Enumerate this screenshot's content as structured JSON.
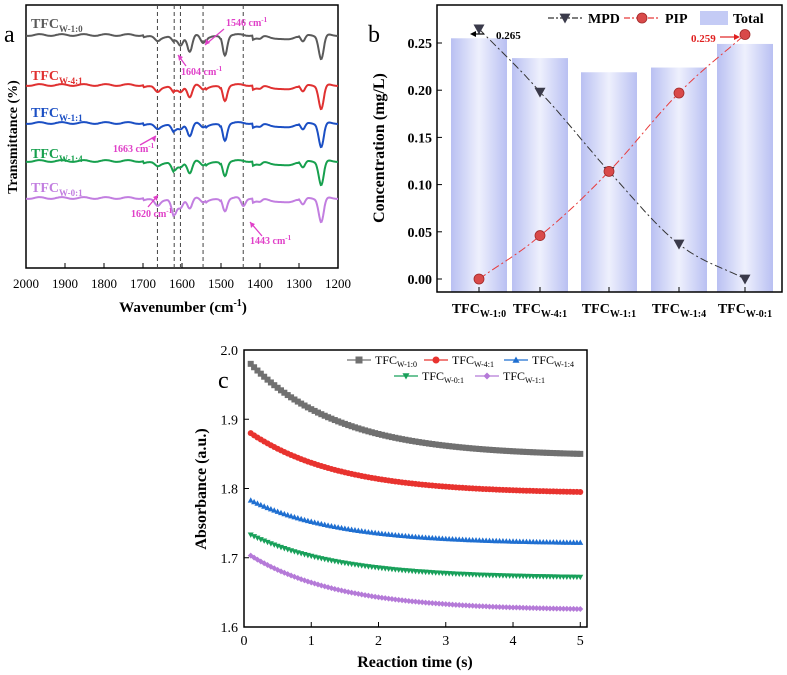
{
  "chart_data": [
    {
      "panel": "a",
      "type": "line",
      "xlabel": "Wavenumber (cm",
      "xlabel_sup": "-1",
      "xlabel_end": ")",
      "ylabel": "Transmittance (%)",
      "xlim": [
        2000,
        1200
      ],
      "xticks": [
        2000,
        1900,
        1800,
        1700,
        1600,
        1500,
        1400,
        1300,
        1200
      ],
      "ref_lines": [
        1663,
        1620,
        1604,
        1546,
        1443
      ],
      "series": [
        {
          "name": "TFC",
          "sub": "W-1:0",
          "color": "#5a5a5a",
          "offset": 0,
          "peaks": [
            [
              1663,
              0.2
            ],
            [
              1620,
              0.3
            ],
            [
              1604,
              0.55
            ],
            [
              1580,
              0.95
            ],
            [
              1546,
              0.4
            ],
            [
              1490,
              1.1
            ],
            [
              1400,
              0.15
            ],
            [
              1290,
              0.4
            ],
            [
              1243,
              1.35
            ]
          ]
        },
        {
          "name": "TFC",
          "sub": "W-4:1",
          "color": "#e03131",
          "offset": 1,
          "peaks": [
            [
              1663,
              0.25
            ],
            [
              1620,
              0.35
            ],
            [
              1604,
              0.35
            ],
            [
              1580,
              0.7
            ],
            [
              1546,
              0.2
            ],
            [
              1490,
              0.85
            ],
            [
              1400,
              0.15
            ],
            [
              1290,
              0.4
            ],
            [
              1243,
              1.35
            ]
          ]
        },
        {
          "name": "TFC",
          "sub": "W-1:1",
          "color": "#1b4fc4",
          "offset": 2,
          "peaks": [
            [
              1663,
              0.2
            ],
            [
              1620,
              0.45
            ],
            [
              1604,
              0.3
            ],
            [
              1580,
              0.75
            ],
            [
              1546,
              0.2
            ],
            [
              1490,
              0.95
            ],
            [
              1400,
              0.15
            ],
            [
              1290,
              0.4
            ],
            [
              1243,
              1.35
            ]
          ]
        },
        {
          "name": "TFC",
          "sub": "W-1:4",
          "color": "#17a04e",
          "offset": 3,
          "peaks": [
            [
              1663,
              0.15
            ],
            [
              1620,
              0.55
            ],
            [
              1604,
              0.3
            ],
            [
              1580,
              0.7
            ],
            [
              1546,
              0.2
            ],
            [
              1490,
              0.8
            ],
            [
              1400,
              0.15
            ],
            [
              1290,
              0.4
            ],
            [
              1243,
              1.35
            ]
          ]
        },
        {
          "name": "TFC",
          "sub": "W-0:1",
          "color": "#c27ee0",
          "offset": 4,
          "peaks": [
            [
              1663,
              0.3
            ],
            [
              1620,
              0.95
            ],
            [
              1604,
              0.5
            ],
            [
              1580,
              0.6
            ],
            [
              1546,
              0.2
            ],
            [
              1490,
              0.7
            ],
            [
              1443,
              0.45
            ],
            [
              1400,
              0.15
            ],
            [
              1290,
              0.4
            ],
            [
              1243,
              1.35
            ]
          ]
        }
      ],
      "annotations": [
        {
          "text": "1546 cm",
          "sup": "-1"
        },
        {
          "text": "1604 cm",
          "sup": "-1"
        },
        {
          "text": "1663 cm",
          "sup": "-1"
        },
        {
          "text": "1620 cm",
          "sup": "-1"
        },
        {
          "text": "1443 cm",
          "sup": "-1"
        }
      ]
    },
    {
      "panel": "b",
      "type": "bar",
      "ylabel": "Concentration (mg/L)",
      "ylim": [
        -0.01,
        0.28
      ],
      "yticks": [
        "0.00",
        "0.05",
        "0.10",
        "0.15",
        "0.20",
        "0.25"
      ],
      "categories": [
        {
          "main": "TFC",
          "sub": "W-1:0"
        },
        {
          "main": "TFC",
          "sub": "W-4:1"
        },
        {
          "main": "TFC",
          "sub": "W-1:1"
        },
        {
          "main": "TFC",
          "sub": "W-1:4"
        },
        {
          "main": "TFC",
          "sub": "W-0:1"
        }
      ],
      "series": [
        {
          "name": "Total",
          "type": "bar",
          "values": [
            0.255,
            0.234,
            0.219,
            0.224,
            0.249
          ]
        },
        {
          "name": "MPD",
          "type": "line",
          "values": [
            0.265,
            0.198,
            0.114,
            0.037,
            0.0
          ]
        },
        {
          "name": "PIP",
          "type": "line",
          "values": [
            0.0,
            0.046,
            0.114,
            0.197,
            0.259
          ]
        }
      ],
      "data_labels": [
        "0.265",
        "0.259"
      ],
      "legend": [
        "MPD",
        "PIP",
        "Total"
      ]
    },
    {
      "panel": "c",
      "type": "line",
      "xlabel": "Reaction time (s)",
      "ylabel": "Absorbance (a.u.)",
      "xlim": [
        0,
        5.1
      ],
      "ylim": [
        1.6,
        2.0
      ],
      "xticks": [
        "0",
        "1",
        "2",
        "3",
        "4",
        "5"
      ],
      "yticks": [
        "1.6",
        "1.7",
        "1.8",
        "1.9",
        "2.0"
      ],
      "series": [
        {
          "name": "TFC",
          "sub": "W-1:0",
          "color": "#707070",
          "marker": "square",
          "start": 1.98,
          "end": 1.85
        },
        {
          "name": "TFC",
          "sub": "W-4:1",
          "color": "#e8332f",
          "marker": "circle",
          "start": 1.88,
          "end": 1.795
        },
        {
          "name": "TFC",
          "sub": "W-1:4",
          "color": "#1f6fd1",
          "marker": "triangle-up",
          "start": 1.783,
          "end": 1.722
        },
        {
          "name": "TFC",
          "sub": "W-0:1",
          "color": "#18a05a",
          "marker": "triangle-down",
          "start": 1.733,
          "end": 1.672
        },
        {
          "name": "TFC",
          "sub": "W-1:1",
          "color": "#b57ad8",
          "marker": "diamond",
          "start": 1.703,
          "end": 1.626
        }
      ]
    }
  ],
  "panel_labels": [
    "a",
    "b",
    "c"
  ]
}
